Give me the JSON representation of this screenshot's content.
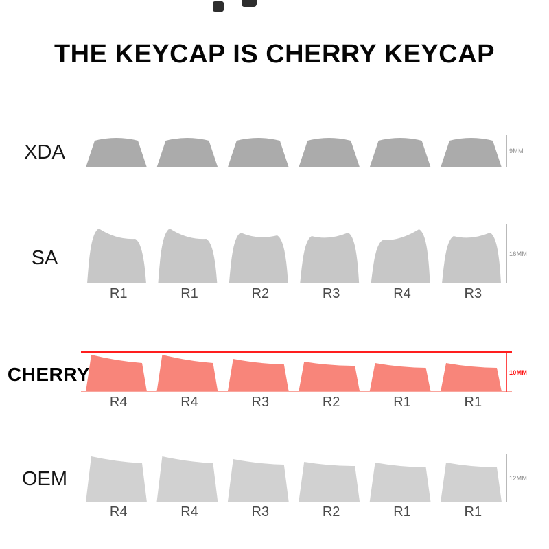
{
  "title": "THE KEYCAP IS CHERRY KEYCAP",
  "accent_colors": {
    "highlight_line": "#ff1e1e",
    "highlight_key": "#f8857a",
    "gray_key": "#bfbfbf",
    "label_text": "#4a4a4a"
  },
  "rows": [
    {
      "name": "XDA",
      "profile": "xda",
      "height_label": "9MM",
      "key_color": "#ababab",
      "key_labels": []
    },
    {
      "name": "SA",
      "profile": "sa",
      "height_label": "16MM",
      "key_color": "#c7c7c7",
      "key_labels": [
        "R1",
        "R1",
        "R2",
        "R3",
        "R4",
        "R3"
      ]
    },
    {
      "name": "CHERRY",
      "profile": "cherry",
      "height_label": "10MM",
      "key_color": "#f8857a",
      "highlighted": true,
      "key_labels": [
        "R4",
        "R4",
        "R3",
        "R2",
        "R1",
        "R1"
      ]
    },
    {
      "name": "OEM",
      "profile": "oem",
      "height_label": "12MM",
      "key_color": "#d1d1d1",
      "key_labels": [
        "R4",
        "R4",
        "R3",
        "R2",
        "R1",
        "R1"
      ]
    }
  ]
}
